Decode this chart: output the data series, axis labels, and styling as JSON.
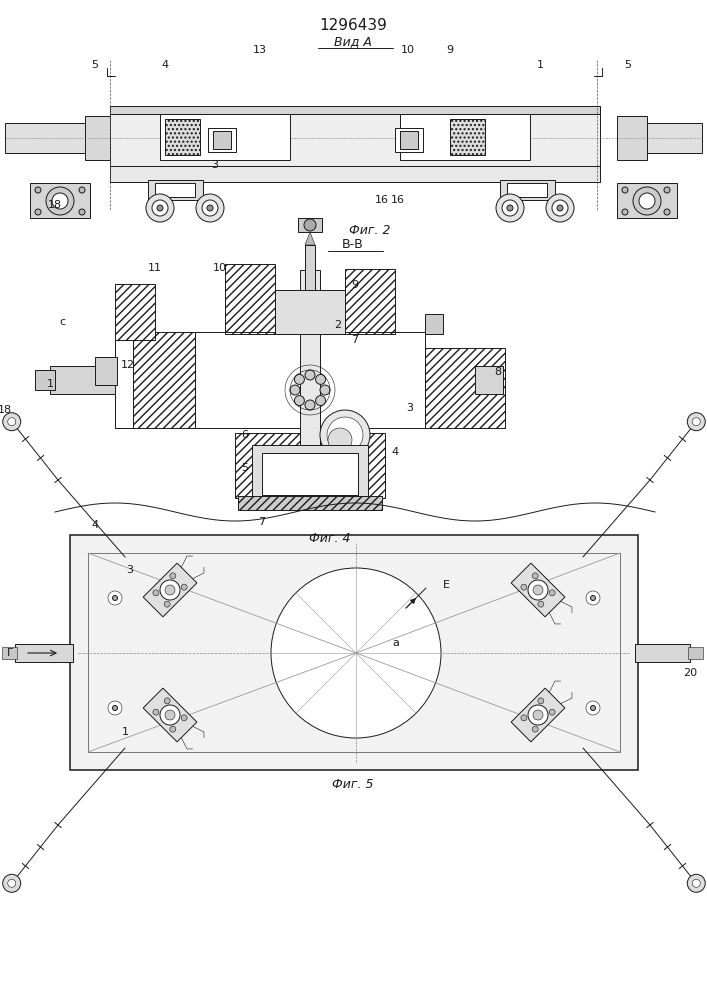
{
  "title": "1296439",
  "bg": "#ffffff",
  "lc": "#1a1a1a",
  "fig_width": 7.07,
  "fig_height": 10.0,
  "dpi": 100
}
